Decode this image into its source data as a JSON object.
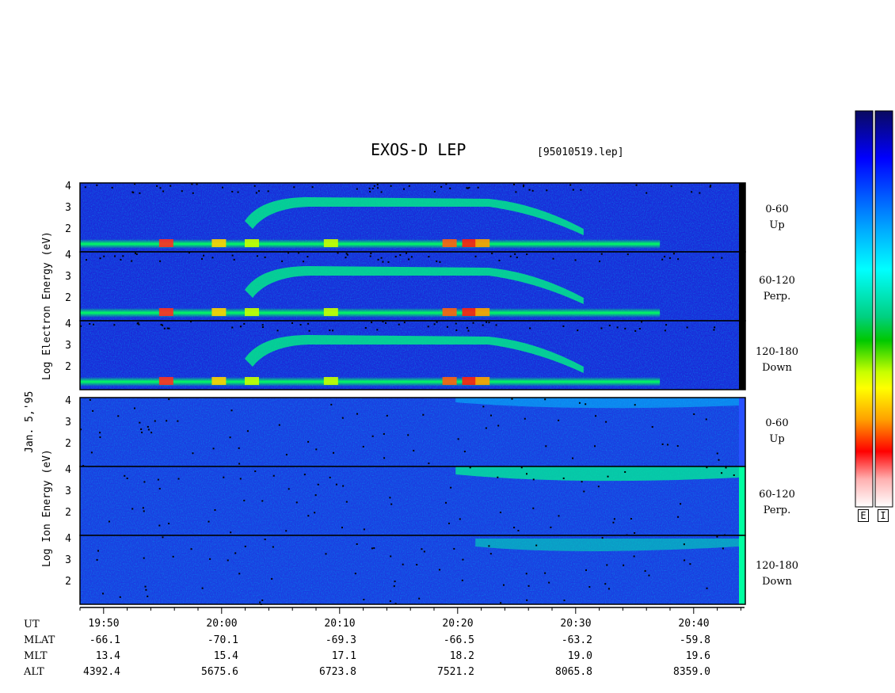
{
  "chart_data": {
    "type": "heatmap",
    "title": "EXOS-D LEP",
    "file_id": "[95010519.lep]",
    "date_label": "Jan. 5,'95",
    "time_labels": [
      "19:50",
      "20:00",
      "20:10",
      "20:20",
      "20:30",
      "20:40"
    ],
    "energy_ticks": [
      "4",
      "3",
      "2"
    ],
    "electron_group": {
      "ylabel_words": [
        "Log",
        "Electron",
        "Energy",
        "(eV)"
      ],
      "panels": [
        {
          "range": "0-60",
          "direction": "Up"
        },
        {
          "range": "60-120",
          "direction": "Perp."
        },
        {
          "range": "120-180",
          "direction": "Down"
        }
      ]
    },
    "ion_group": {
      "ylabel_words": [
        "Log",
        "Ion",
        "Energy",
        "(eV)"
      ],
      "panels": [
        {
          "range": "0-60",
          "direction": "Up"
        },
        {
          "range": "60-120",
          "direction": "Perp."
        },
        {
          "range": "120-180",
          "direction": "Down"
        }
      ]
    },
    "ephemeris": {
      "labels": [
        "UT",
        "MLAT",
        "MLT",
        "ALT"
      ],
      "MLAT": [
        "-66.1",
        "-70.1",
        "-69.3",
        "-66.5",
        "-63.2",
        "-59.8"
      ],
      "MLT": [
        "13.4",
        "15.4",
        "17.1",
        "18.2",
        "19.0",
        "19.6"
      ],
      "ALT": [
        "4392.4",
        "5675.6",
        "6723.8",
        "7521.2",
        "8065.8",
        "8359.0"
      ]
    },
    "colorbar_labels": [
      "E",
      "I"
    ],
    "colormap": [
      "#0a0a78",
      "#0000ff",
      "#00aaff",
      "#00ffff",
      "#00e090",
      "#00c800",
      "#c8ff00",
      "#ffff00",
      "#ffa000",
      "#ff0000",
      "#ffc8c8",
      "#ffffff"
    ]
  }
}
